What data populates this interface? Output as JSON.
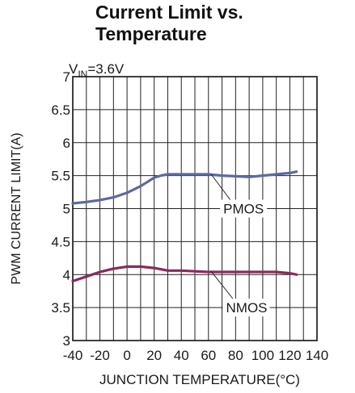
{
  "chart_data": {
    "type": "line",
    "title_line1": "Current Limit vs.",
    "title_line2": "Temperature",
    "condition_label": "V",
    "condition_subscript": "IN",
    "condition_value": "=3.6V",
    "xlabel": "JUNCTION TEMPERATURE(°C)",
    "ylabel": "PWM CURRENT LIMIT(A)",
    "xlim": [
      -40,
      140
    ],
    "ylim": [
      3,
      7
    ],
    "xticks": [
      -40,
      -20,
      0,
      20,
      40,
      60,
      80,
      100,
      120,
      140
    ],
    "xtick_labels": [
      "-40",
      "-20",
      "0",
      "20",
      "40",
      "60",
      "80",
      "100",
      "120",
      "140"
    ],
    "yticks": [
      3,
      3.5,
      4,
      4.5,
      5,
      5.5,
      6,
      6.5,
      7
    ],
    "ytick_labels": [
      "3",
      "3.5",
      "4",
      "4.5",
      "5",
      "5.5",
      "6",
      "6.5",
      "7"
    ],
    "grid": true,
    "series": [
      {
        "name": "PMOS",
        "color": "#5b6aa0",
        "x": [
          -40,
          -30,
          -20,
          -10,
          0,
          10,
          20,
          25,
          30,
          40,
          50,
          60,
          70,
          80,
          90,
          100,
          110,
          120,
          125
        ],
        "y": [
          5.08,
          5.1,
          5.13,
          5.17,
          5.24,
          5.34,
          5.47,
          5.5,
          5.52,
          5.52,
          5.52,
          5.52,
          5.5,
          5.49,
          5.48,
          5.5,
          5.52,
          5.54,
          5.56
        ]
      },
      {
        "name": "NMOS",
        "color": "#8b2a5a",
        "x": [
          -40,
          -30,
          -20,
          -10,
          0,
          10,
          20,
          25,
          30,
          40,
          50,
          60,
          70,
          80,
          90,
          100,
          110,
          120,
          125
        ],
        "y": [
          3.9,
          3.97,
          4.04,
          4.09,
          4.12,
          4.12,
          4.1,
          4.08,
          4.06,
          4.06,
          4.05,
          4.04,
          4.04,
          4.04,
          4.04,
          4.04,
          4.04,
          4.02,
          4.0
        ]
      }
    ]
  }
}
